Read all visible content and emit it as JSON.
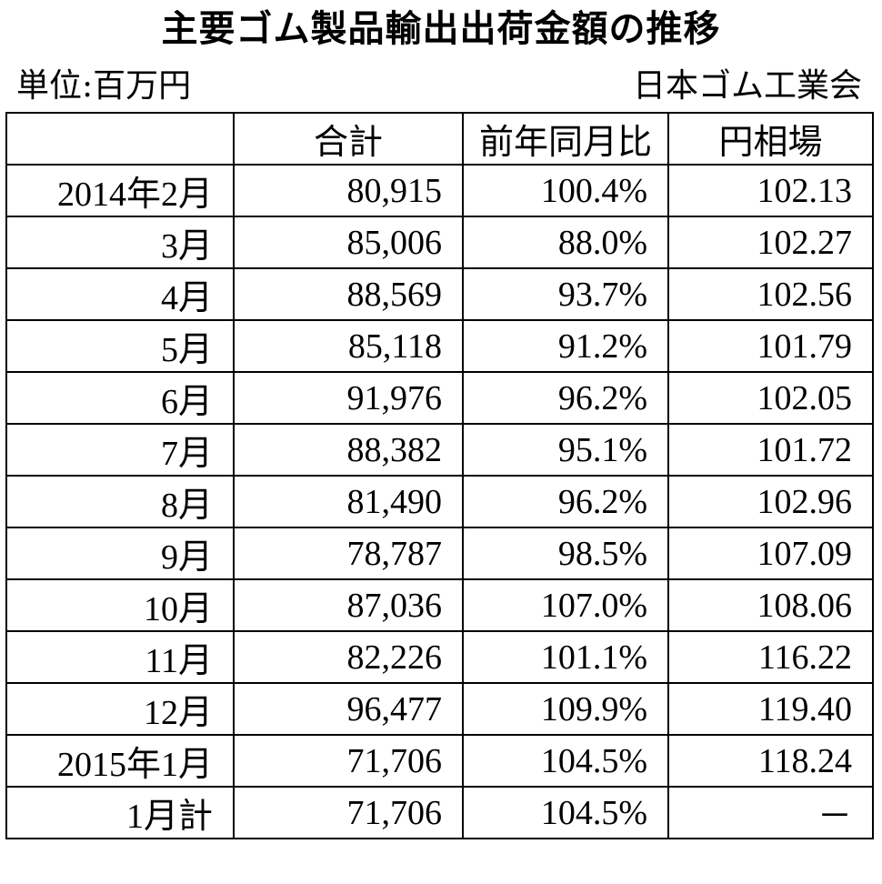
{
  "title": "主要ゴム製品輸出出荷金額の推移",
  "unit": "単位:百万円",
  "source": "日本ゴム工業会",
  "table": {
    "headers": [
      "",
      "合計",
      "前年同月比",
      "円相場"
    ],
    "rows": [
      [
        "2014年2月",
        "80,915",
        "100.4%",
        "102.13"
      ],
      [
        "3月",
        "85,006",
        "88.0%",
        "102.27"
      ],
      [
        "4月",
        "88,569",
        "93.7%",
        "102.56"
      ],
      [
        "5月",
        "85,118",
        "91.2%",
        "101.79"
      ],
      [
        "6月",
        "91,976",
        "96.2%",
        "102.05"
      ],
      [
        "7月",
        "88,382",
        "95.1%",
        "101.72"
      ],
      [
        "8月",
        "81,490",
        "96.2%",
        "102.96"
      ],
      [
        "9月",
        "78,787",
        "98.5%",
        "107.09"
      ],
      [
        "10月",
        "87,036",
        "107.0%",
        "108.06"
      ],
      [
        "11月",
        "82,226",
        "101.1%",
        "116.22"
      ],
      [
        "12月",
        "96,477",
        "109.9%",
        "119.40"
      ],
      [
        "2015年1月",
        "71,706",
        "104.5%",
        "118.24"
      ],
      [
        "1月計",
        "71,706",
        "104.5%",
        "－"
      ]
    ]
  }
}
